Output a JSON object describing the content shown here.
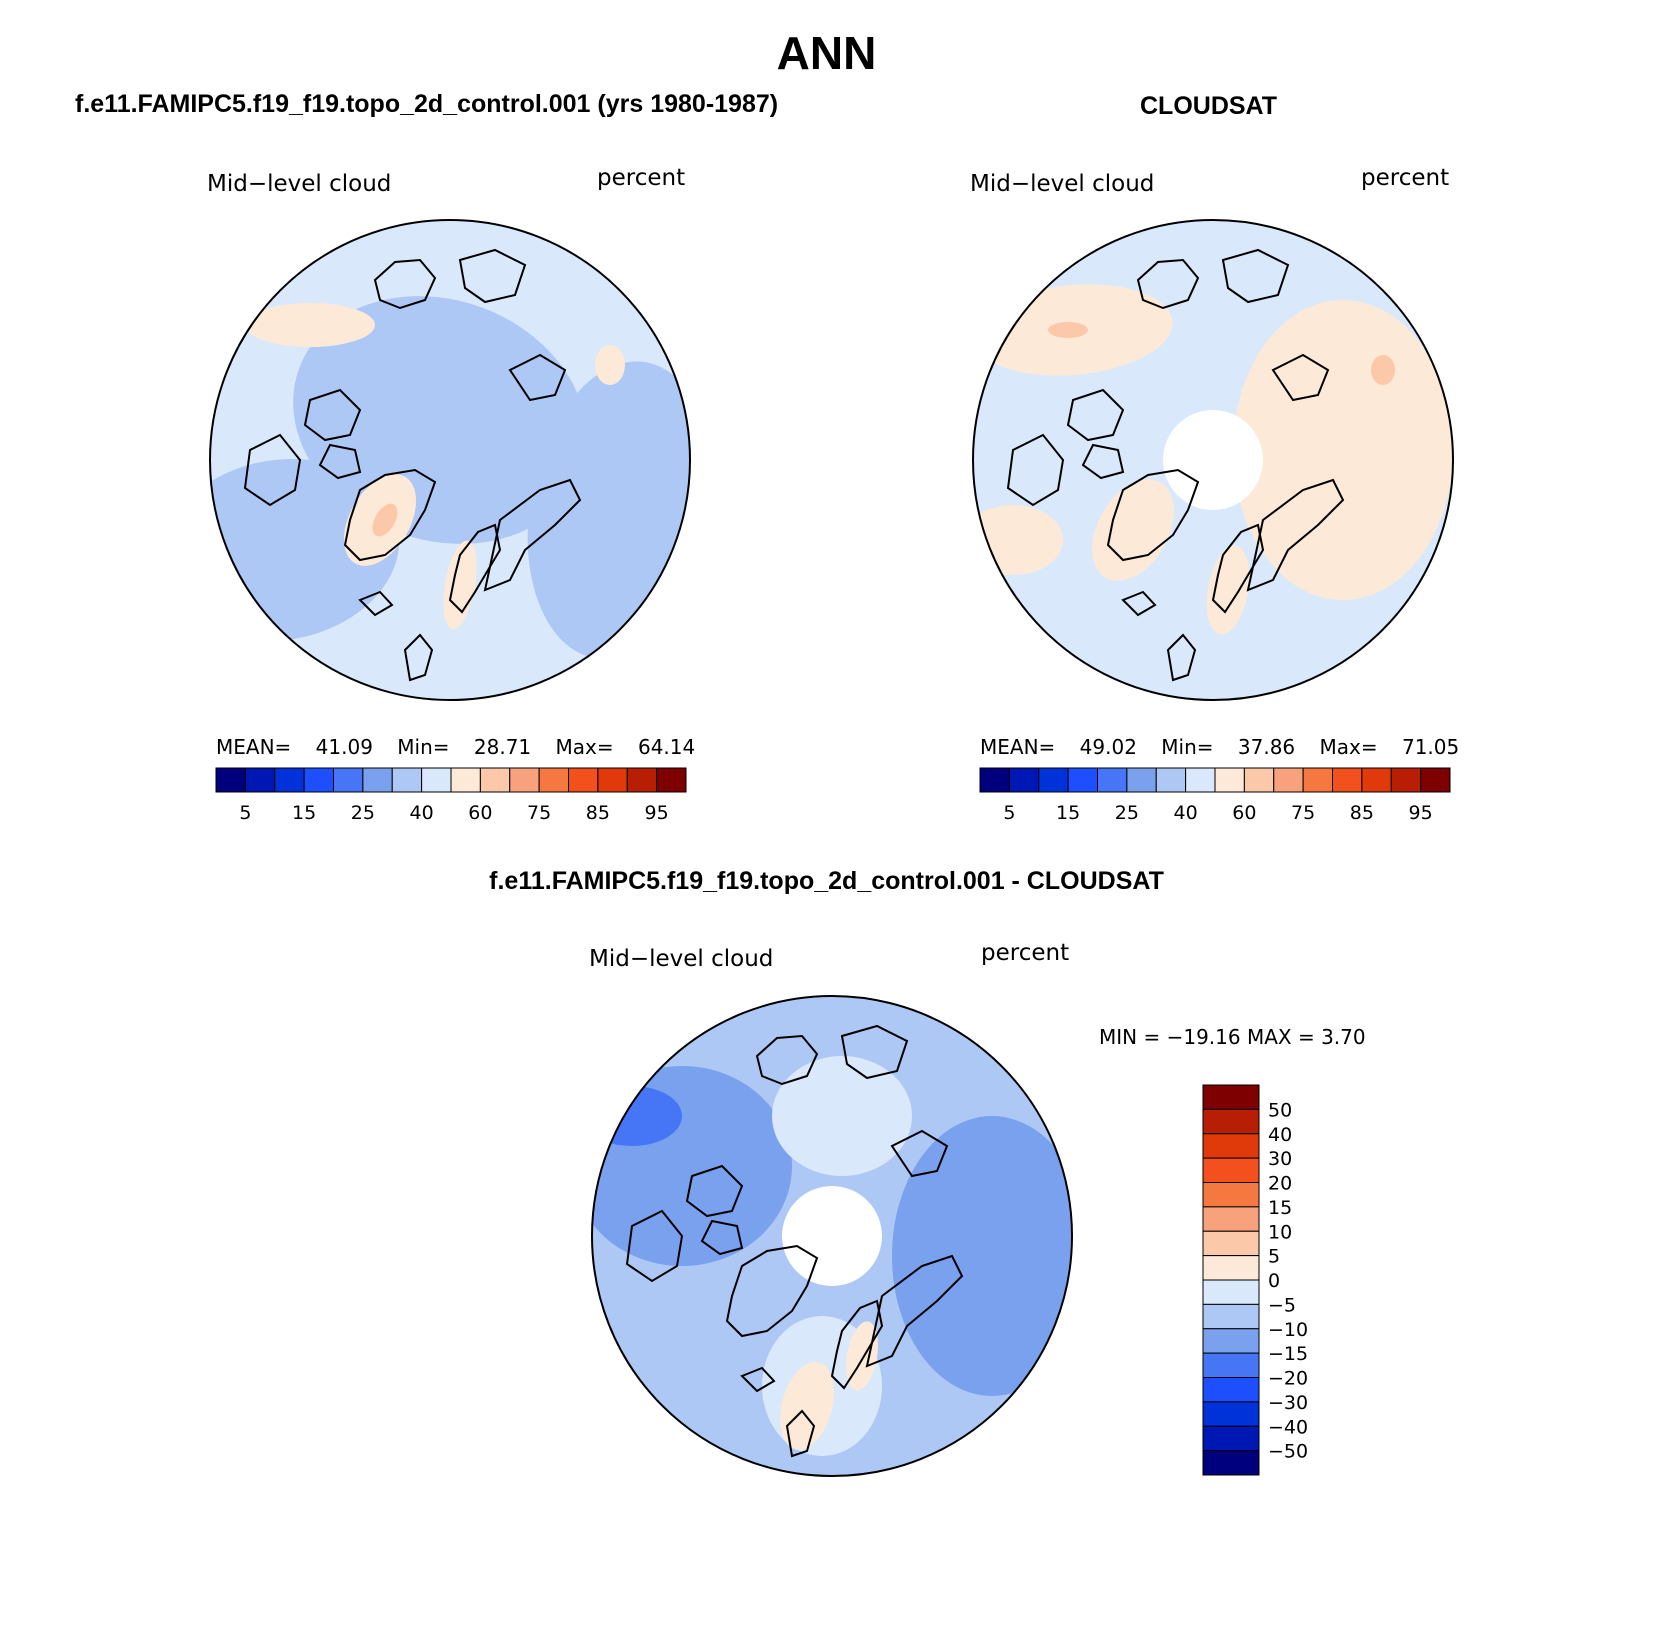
{
  "title": "ANN",
  "palette": [
    "#00007f",
    "#0018b3",
    "#0032d9",
    "#1e4fff",
    "#4676f5",
    "#7aa1ee",
    "#aec8f6",
    "#d9e9fb",
    "#fde9d8",
    "#fbc9a9",
    "#f7a27d",
    "#f57840",
    "#f2501c",
    "#e13a0a",
    "#b81e04",
    "#7f0000"
  ],
  "panels": [
    {
      "id": "model",
      "title": "f.e11.FAMIPC5.f19_f19.topo_2d_control.001 (yrs 1980-1987)",
      "variable_label": "Mid−level cloud",
      "units_label": "percent",
      "stats": {
        "mean_label": "MEAN=",
        "mean": "41.09",
        "min_label": "Min=",
        "min": "28.71",
        "max_label": "Max=",
        "max": "64.14"
      },
      "colorbar_ticks": [
        "5",
        "15",
        "25",
        "40",
        "60",
        "75",
        "85",
        "95"
      ]
    },
    {
      "id": "obs",
      "title": "CLOUDSAT",
      "variable_label": "Mid−level cloud",
      "units_label": "percent",
      "stats": {
        "mean_label": "MEAN=",
        "mean": "49.02",
        "min_label": "Min=",
        "min": "37.86",
        "max_label": "Max=",
        "max": "71.05"
      },
      "colorbar_ticks": [
        "5",
        "15",
        "25",
        "40",
        "60",
        "75",
        "85",
        "95"
      ]
    },
    {
      "id": "diff",
      "title": "f.e11.FAMIPC5.f19_f19.topo_2d_control.001 - CLOUDSAT",
      "variable_label": "Mid−level cloud",
      "units_label": "percent",
      "stats_text": "MIN = −19.16 MAX =    3.70",
      "colorbar_levels": [
        "50",
        "40",
        "30",
        "20",
        "15",
        "10",
        "5",
        "0",
        "−5",
        "−10",
        "−15",
        "−20",
        "−30",
        "−40",
        "−50"
      ]
    }
  ],
  "map_colors": {
    "model": [
      "#d9e9fb",
      "#aec8f6",
      "#fde9d8",
      "#fbc9a9"
    ],
    "obs": [
      "#d9e9fb",
      "#fde9d8",
      "#fbc9a9",
      "#aec8f6"
    ],
    "diff": [
      "#aec8f6",
      "#7aa1ee",
      "#d9e9fb",
      "#4676f5",
      "#fde9d8"
    ]
  }
}
